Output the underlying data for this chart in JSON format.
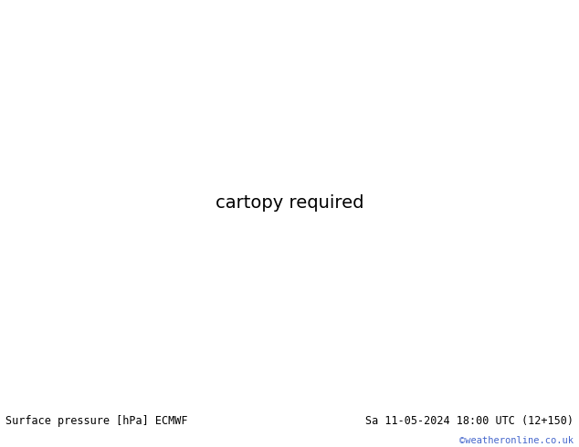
{
  "title_left": "Surface pressure [hPa] ECMWF",
  "title_right": "Sa 11-05-2024 18:00 UTC (12+150)",
  "watermark": "©weatheronline.co.uk",
  "bg_color": "#c8c8c8",
  "land_color": "#c8e8a0",
  "sea_color": "#c8c8c8",
  "red_land_color": "#e88080",
  "bottom_bar_color": "#ffffff",
  "bottom_text_color": "#000000",
  "watermark_color": "#4466cc",
  "lon_min": 88,
  "lon_max": 168,
  "lat_min": -12,
  "lat_max": 52,
  "figwidth": 6.34,
  "figheight": 4.9,
  "dpi": 100
}
